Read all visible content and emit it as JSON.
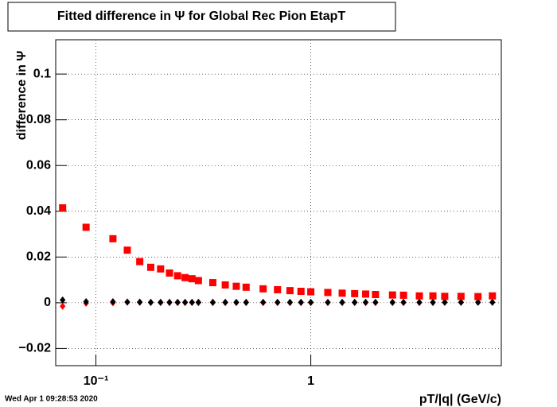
{
  "chart_data": {
    "type": "scatter",
    "title": "Fitted difference in  Ψ  for Global Rec Pion EtapT",
    "x_label": "pT/|q| (GeV/c)",
    "y_label": "difference in  Ψ",
    "timestamp": "Wed Apr  1 09:28:53 2020",
    "log_x": true,
    "grid": true,
    "xlim": [
      0.065,
      7.7
    ],
    "ylim": [
      -0.0275,
      0.115
    ],
    "xticks": [
      {
        "value": 0.1,
        "label": "10⁻¹"
      },
      1
    ],
    "yticks": [
      {
        "value": -0.02,
        "label": "−0.02"
      },
      0,
      0.02,
      0.04,
      0.06,
      0.08,
      {
        "value": 0.1,
        "label": "0.1"
      }
    ],
    "x": [
      0.07,
      0.09,
      0.12,
      0.14,
      0.16,
      0.18,
      0.2,
      0.22,
      0.24,
      0.26,
      0.28,
      0.3,
      0.35,
      0.4,
      0.45,
      0.5,
      0.6,
      0.7,
      0.8,
      0.9,
      1.0,
      1.2,
      1.4,
      1.6,
      1.8,
      2.0,
      2.4,
      2.7,
      3.2,
      3.7,
      4.2,
      5,
      6,
      7
    ],
    "series": [
      {
        "color": "#ff0000",
        "marker": "diamond",
        "values": [
          -0.0015,
          -0.0002,
          0,
          0.0003,
          0.0002,
          0.0001,
          0.0001,
          0.0001,
          0.0001,
          0.0001,
          0.0001,
          0.0001,
          0.0001,
          0.0001,
          0.0001,
          0.0001,
          0.0001,
          0.0001,
          0.0001,
          0.0001,
          0.0001,
          0.0001,
          0.0001,
          0.0001,
          0.0001,
          0.0001,
          0.0001,
          0.0001,
          0.0001,
          0.0001,
          0.0002,
          0.0002,
          0.0002,
          0.0002
        ]
      },
      {
        "color": "#000000",
        "marker": "diamond",
        "values": [
          0.0012,
          0.0005,
          0.0005,
          0.0003,
          0.0003,
          0.0002,
          0.0002,
          0.0002,
          0.0002,
          0.0002,
          0.0002,
          0.0002,
          0.0002,
          0.0002,
          0.0002,
          0.0002,
          0.0002,
          0.0002,
          0.0002,
          0.0002,
          0.0002,
          0.0002,
          0.0002,
          0.0002,
          0.0002,
          0.0002,
          0.0002,
          0.0002,
          0.0002,
          0.0002,
          0.0002,
          0.0002,
          0.0002,
          0.0002
        ]
      },
      {
        "color": "#ff0000",
        "marker": "square",
        "values": [
          0.0415,
          0.033,
          0.028,
          0.023,
          0.018,
          0.0155,
          0.0148,
          0.013,
          0.0118,
          0.011,
          0.0105,
          0.0097,
          0.0088,
          0.0078,
          0.0072,
          0.0068,
          0.0061,
          0.0057,
          0.0053,
          0.005,
          0.0048,
          0.0045,
          0.0042,
          0.004,
          0.0038,
          0.0036,
          0.0034,
          0.0033,
          0.003,
          0.003,
          0.0028,
          0.0028,
          0.0027,
          0.003
        ]
      }
    ]
  }
}
